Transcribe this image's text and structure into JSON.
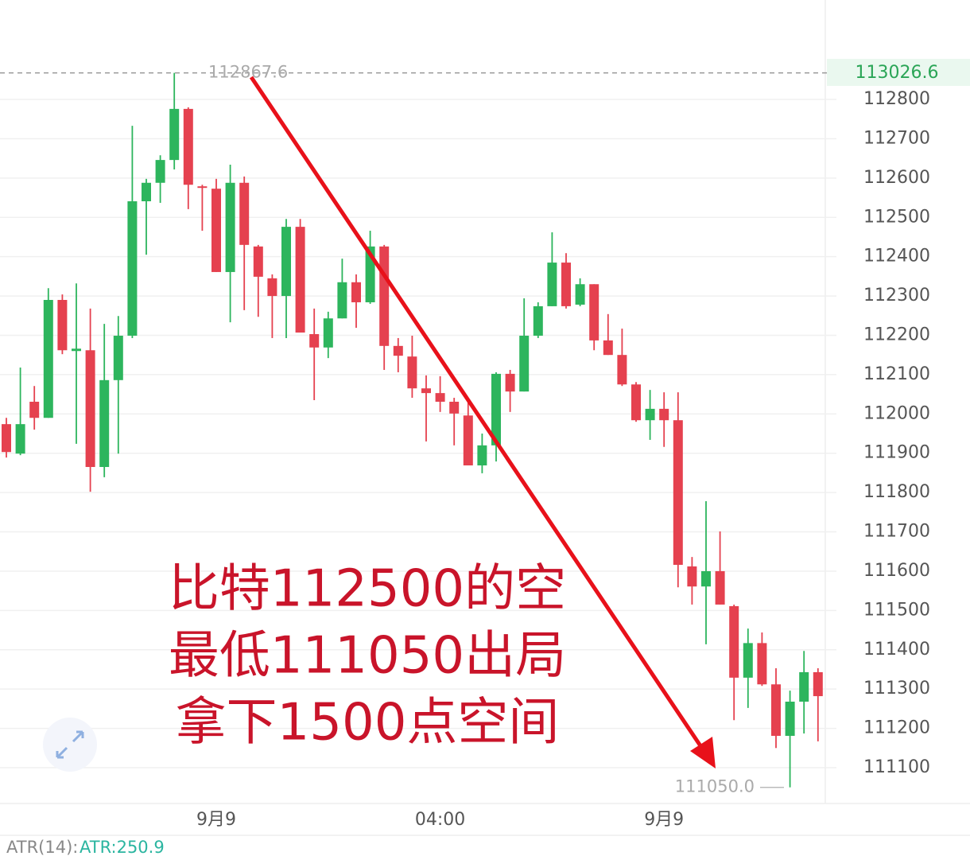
{
  "chart_data": {
    "type": "candlestick",
    "categories": [
      null,
      null,
      null,
      null,
      null,
      null,
      null,
      null,
      null,
      null,
      null,
      null,
      null,
      null,
      null,
      "9月9",
      null,
      null,
      null,
      null,
      null,
      null,
      null,
      null,
      null,
      null,
      null,
      null,
      null,
      null,
      null,
      "04:00",
      null,
      null,
      null,
      null,
      null,
      null,
      null,
      null,
      null,
      null,
      null,
      null,
      null,
      null,
      null,
      "9月9",
      null,
      null,
      null,
      null,
      null,
      null,
      null,
      null,
      null,
      null,
      null
    ],
    "open": [
      111974,
      111899,
      112031,
      111990,
      112290,
      112160,
      112162,
      111865,
      112086,
      112199,
      112541,
      112588,
      112646,
      112776,
      112579,
      112573,
      112361,
      112588,
      112426,
      112345,
      112300,
      112476,
      112203,
      112169,
      112243,
      112335,
      112284,
      112426,
      112173,
      112146,
      112065,
      112053,
      112031,
      111996,
      111869,
      111920,
      112102,
      112057,
      112199,
      112274,
      112385,
      112278,
      112330,
      112187,
      112150,
      112075,
      111984,
      112013,
      111984,
      111612,
      111561,
      111600,
      111511,
      111329,
      111417,
      111312,
      111181,
      111268,
      111343
    ],
    "high": [
      111990,
      112118,
      112071,
      112320,
      112304,
      112332,
      112268,
      112229,
      112249,
      112733,
      112598,
      112658,
      112867.6,
      112780,
      112583,
      112598,
      112634,
      112604,
      112430,
      112355,
      112496,
      112496,
      112268,
      112260,
      112395,
      112355,
      112466,
      112430,
      112193,
      112199,
      112098,
      112096,
      112041,
      112041,
      111950,
      112106,
      112112,
      112294,
      112284,
      112462,
      112409,
      112345,
      112330,
      112254,
      112217,
      112081,
      112061,
      112055,
      112055,
      111636,
      111778,
      111701,
      111515,
      111454,
      111444,
      111353,
      111296,
      111397,
      111353
    ],
    "low": [
      111889,
      111895,
      111960,
      111990,
      112152,
      111924,
      111802,
      111839,
      111899,
      112193,
      112405,
      112537,
      112622,
      112521,
      112466,
      112361,
      112233,
      112264,
      112247,
      112193,
      112193,
      112207,
      112035,
      112142,
      112243,
      112219,
      112280,
      112112,
      112106,
      112041,
      111930,
      112005,
      111920,
      111869,
      111849,
      111879,
      112005,
      112057,
      112193,
      112274,
      112268,
      112274,
      112162,
      112150,
      112071,
      111980,
      111934,
      111916,
      111559,
      111515,
      111414,
      111515,
      111221,
      111252,
      111308,
      111150,
      111050,
      111187,
      111167
    ],
    "close": [
      111903,
      111974,
      111990,
      112290,
      112162,
      112166,
      111865,
      112086,
      112199,
      112541,
      112588,
      112646,
      112776,
      112583,
      112575,
      112361,
      112588,
      112430,
      112349,
      112300,
      112476,
      112207,
      112169,
      112243,
      112335,
      112284,
      112426,
      112173,
      112148,
      112065,
      112053,
      112031,
      112001,
      111869,
      111920,
      112102,
      112057,
      112199,
      112274,
      112385,
      112274,
      112330,
      112187,
      112150,
      112075,
      111984,
      112013,
      111984,
      111616,
      111561,
      111600,
      111515,
      111329,
      111417,
      111312,
      111181,
      111268,
      111343,
      111282
    ],
    "up_color": "#2db55d",
    "down_color": "#e5414f",
    "ylim": [
      111000,
      113050
    ],
    "yticks": [
      111100,
      111200,
      111300,
      111400,
      111500,
      111600,
      111700,
      111800,
      111900,
      112000,
      112100,
      112200,
      112300,
      112400,
      112500,
      112600,
      112700,
      112800
    ],
    "grid": true,
    "max_label": 112867.6,
    "min_label": {
      "value": 111050,
      "label": "111050.0"
    },
    "last_price": "113026.6",
    "annotation": [
      "比特112500的空",
      "最低111050出局",
      "拿下1500点空间"
    ],
    "indicator": {
      "name": "ATR(14):",
      "value": "ATR:250.9"
    }
  }
}
